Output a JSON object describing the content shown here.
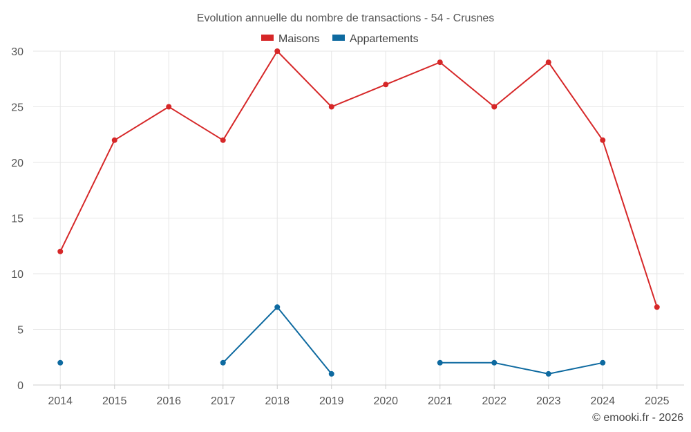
{
  "chart_data": {
    "type": "line",
    "title": "Evolution annuelle du nombre de transactions - 54 - Crusnes",
    "categories": [
      "2014",
      "2015",
      "2016",
      "2017",
      "2018",
      "2019",
      "2020",
      "2021",
      "2022",
      "2023",
      "2024",
      "2025"
    ],
    "series": [
      {
        "name": "Maisons",
        "color": "#d62728",
        "values": [
          12,
          22,
          25,
          22,
          30,
          25,
          27,
          29,
          25,
          29,
          22,
          7
        ]
      },
      {
        "name": "Appartements",
        "color": "#0e6aa0",
        "values": [
          2,
          null,
          null,
          2,
          7,
          1,
          null,
          2,
          2,
          1,
          2,
          null
        ]
      }
    ],
    "ylim": [
      0,
      30
    ],
    "yticks": [
      0,
      5,
      10,
      15,
      20,
      25,
      30
    ],
    "grid": true,
    "legend": "top-center",
    "xlabel": "",
    "ylabel": ""
  },
  "credit": "© emooki.fr - 2026"
}
